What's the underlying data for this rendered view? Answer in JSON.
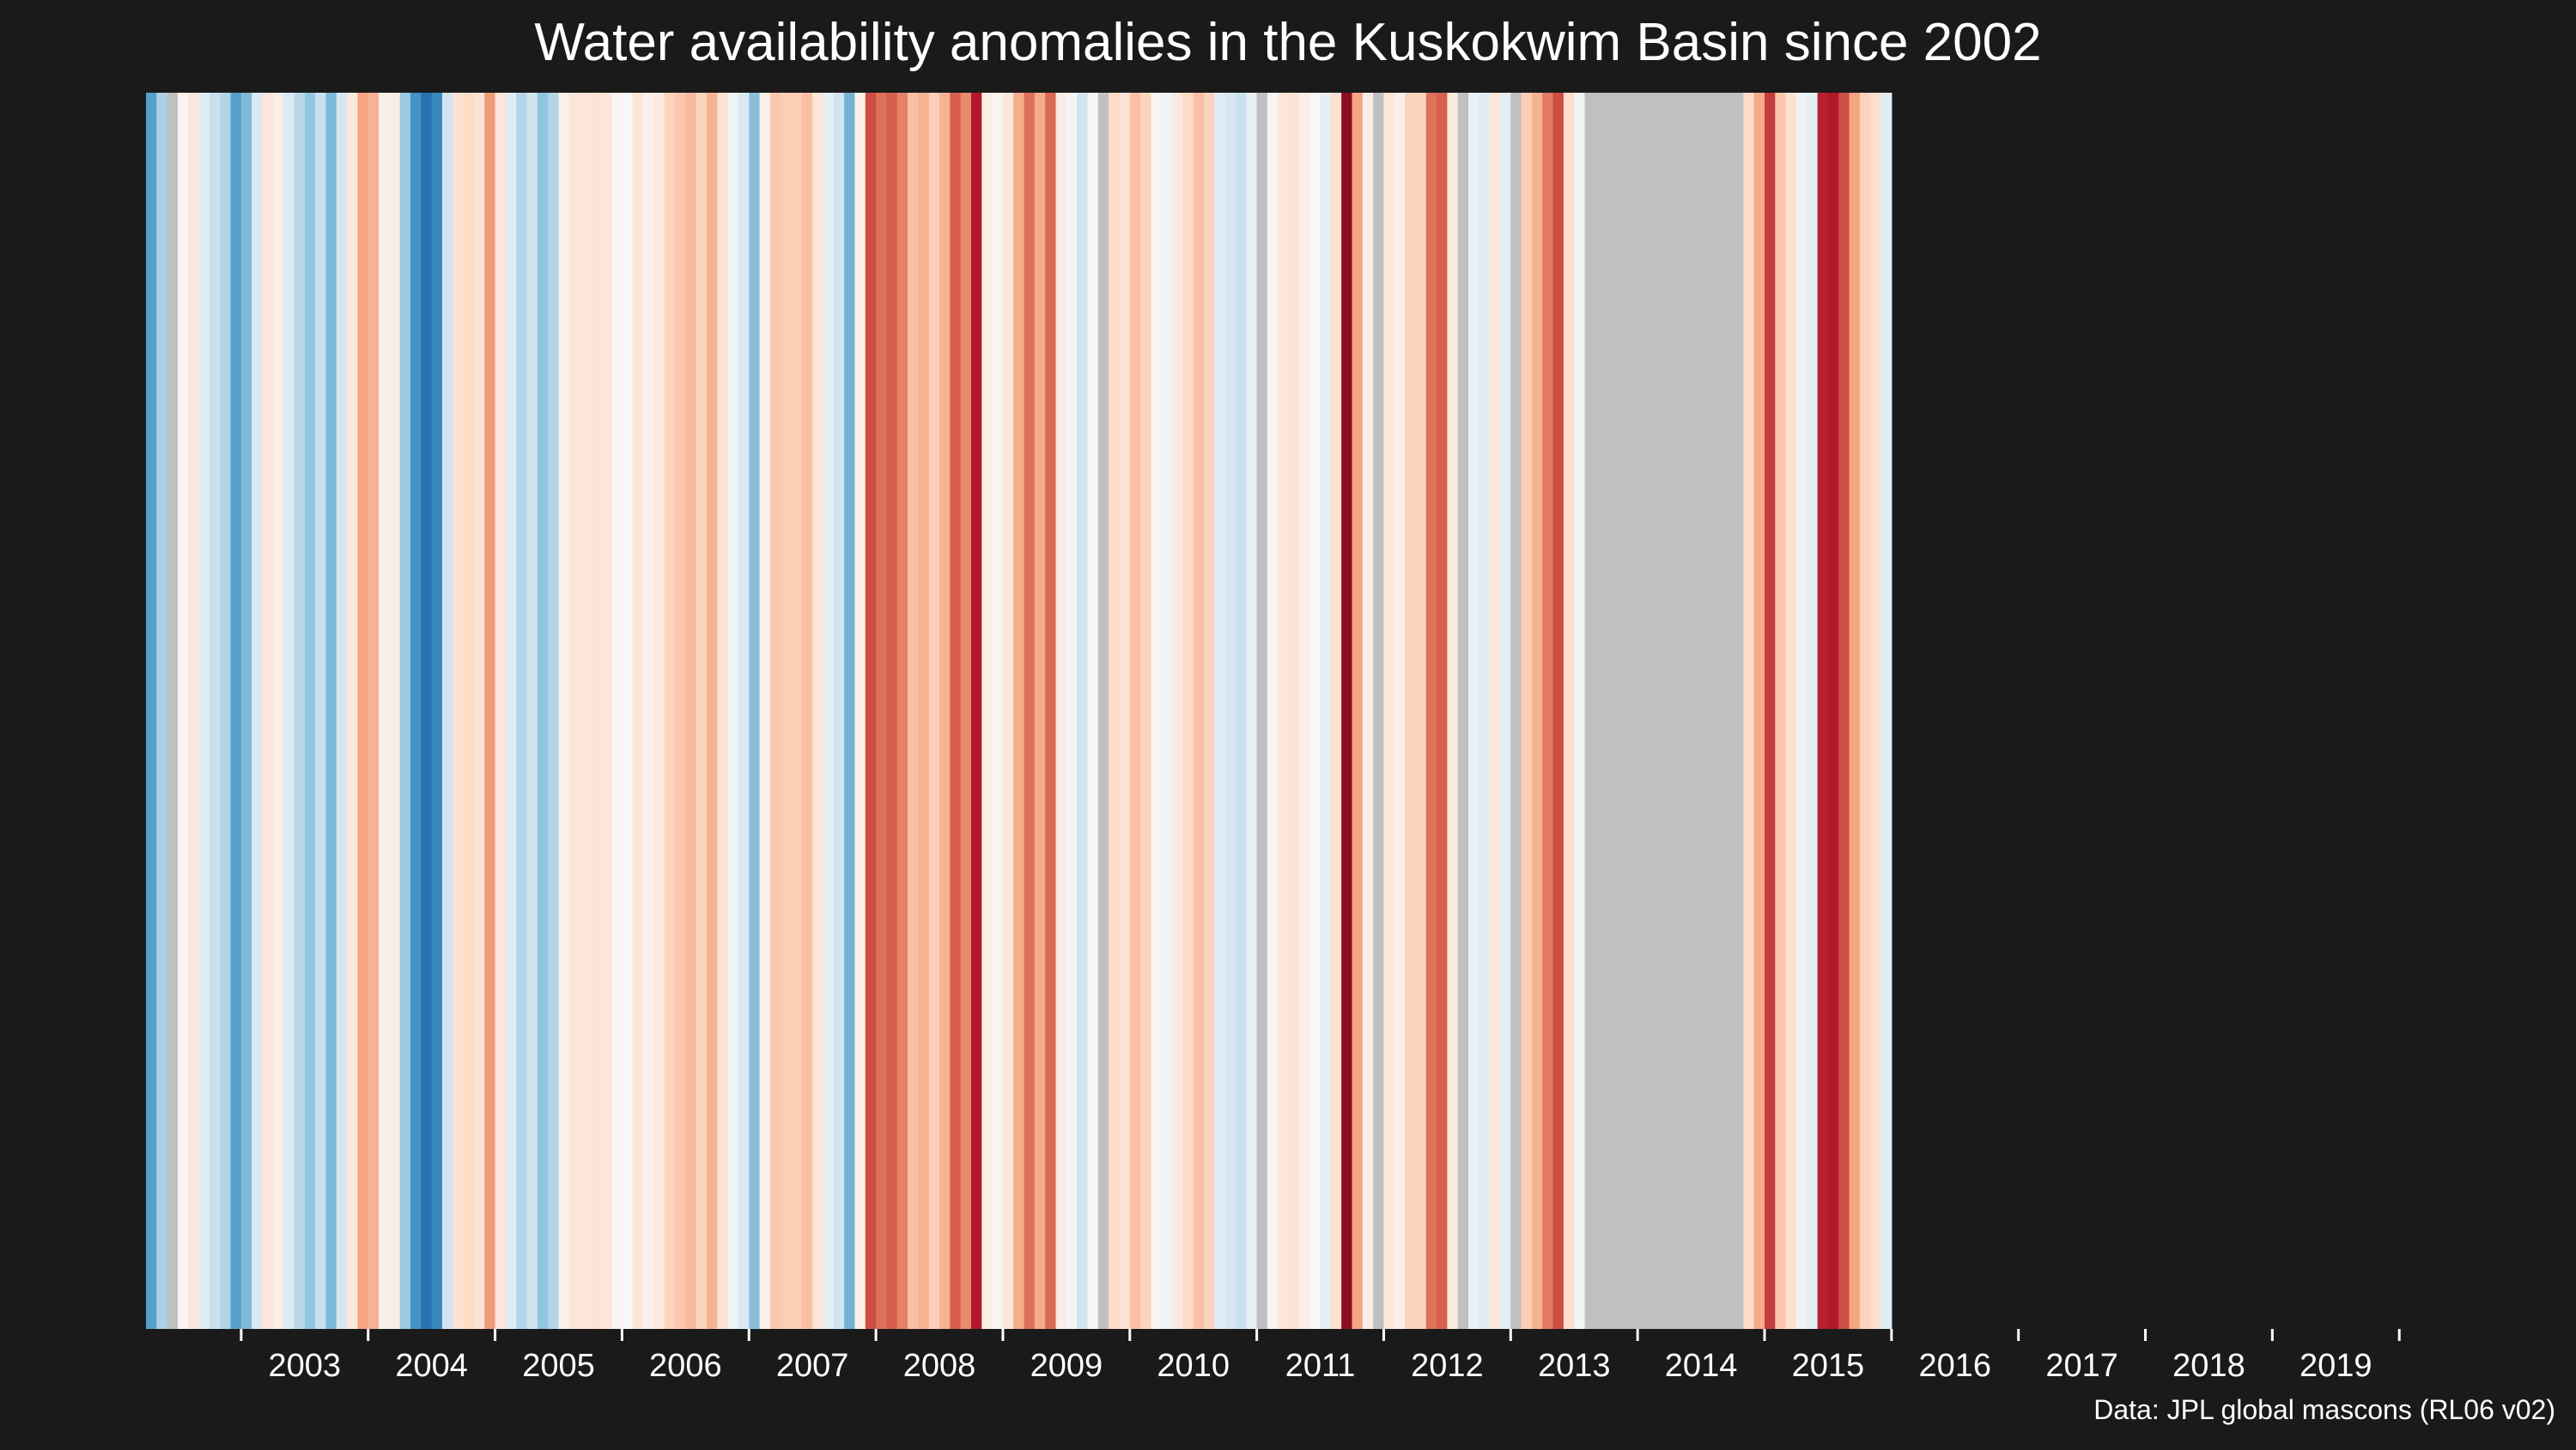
{
  "chart_data": {
    "type": "heatmap",
    "title": "Water availability anomalies in the Kuskokwim Basin since 2002",
    "source": "Data: JPL global mascons (RL06 v02)",
    "xlabel": "",
    "ylabel": "",
    "x_tick_labels": [
      "2003",
      "2004",
      "2005",
      "2006",
      "2007",
      "2008",
      "2009",
      "2010",
      "2011",
      "2012",
      "2013",
      "2014",
      "2015",
      "2016",
      "2017",
      "2018",
      "2019"
    ],
    "x_range": [
      2002.25,
      2020.33
    ],
    "color_scale": "RdBu diverging: blue = wetter than average, red = drier than average, grey = no data",
    "anomaly_range": [
      -4,
      4
    ],
    "time_step": "monthly",
    "start_month": "2002-04",
    "missing_color": "#c0c0c0",
    "palette": [
      "#053061",
      "#2166ac",
      "#4393c3",
      "#92c5de",
      "#d1e5f0",
      "#f7f7f7",
      "#fddbc7",
      "#f4a582",
      "#d6604d",
      "#b2182b",
      "#67001f"
    ],
    "anomalies": [
      -2.2,
      -1.3,
      null,
      0.1,
      0.5,
      -0.5,
      -0.9,
      -1.2,
      -2.2,
      -1.8,
      -0.6,
      0.5,
      0.3,
      -0.6,
      -1.1,
      -1.6,
      -0.9,
      -1.8,
      -0.7,
      0.4,
      1.6,
      1.4,
      0.2,
      0.3,
      -1.5,
      -2.4,
      -3.0,
      -2.6,
      -0.8,
      0.6,
      0.8,
      0.6,
      1.7,
      0.5,
      -0.5,
      -1.2,
      -0.8,
      -1.6,
      -1.2,
      0.2,
      0.5,
      0.5,
      0.6,
      0.5,
      0.1,
      0.0,
      0.5,
      0.2,
      0.4,
      0.9,
      1.1,
      1.3,
      0.9,
      1.4,
      0.6,
      -0.2,
      -0.6,
      -1.7,
      0.2,
      1.1,
      1.0,
      1.0,
      1.2,
      0.5,
      -0.4,
      -0.8,
      -1.9,
      0.2,
      2.6,
      2.2,
      2.4,
      2.0,
      1.2,
      1.4,
      1.0,
      1.4,
      2.4,
      1.9,
      3.2,
      0.3,
      0.1,
      0.5,
      1.5,
      2.2,
      1.5,
      2.3,
      0.3,
      -0.1,
      -0.8,
      0.1,
      null,
      0.8,
      0.6,
      1.2,
      0.9,
      0.1,
      -0.2,
      0.4,
      0.8,
      1.2,
      0.9,
      -0.5,
      -0.7,
      -0.9,
      -0.3,
      null,
      0.1,
      0.5,
      0.6,
      0.3,
      0.0,
      -0.4,
      0.7,
      3.6,
      1.6,
      0.3,
      null,
      0.5,
      0.2,
      0.9,
      0.9,
      2.2,
      2.4,
      0.4,
      null,
      -0.3,
      -0.5,
      0.5,
      -0.4,
      null,
      1.0,
      1.4,
      2.1,
      2.6,
      0.7,
      -0.1,
      null,
      null,
      null,
      null,
      null,
      null,
      null,
      null,
      null,
      null,
      null,
      null,
      null,
      null,
      null,
      0.8,
      1.5,
      2.8,
      1.1,
      0.6,
      -0.2,
      -0.4,
      3.1,
      3.2,
      2.6,
      1.6,
      0.9,
      0.7,
      -0.5
    ]
  }
}
